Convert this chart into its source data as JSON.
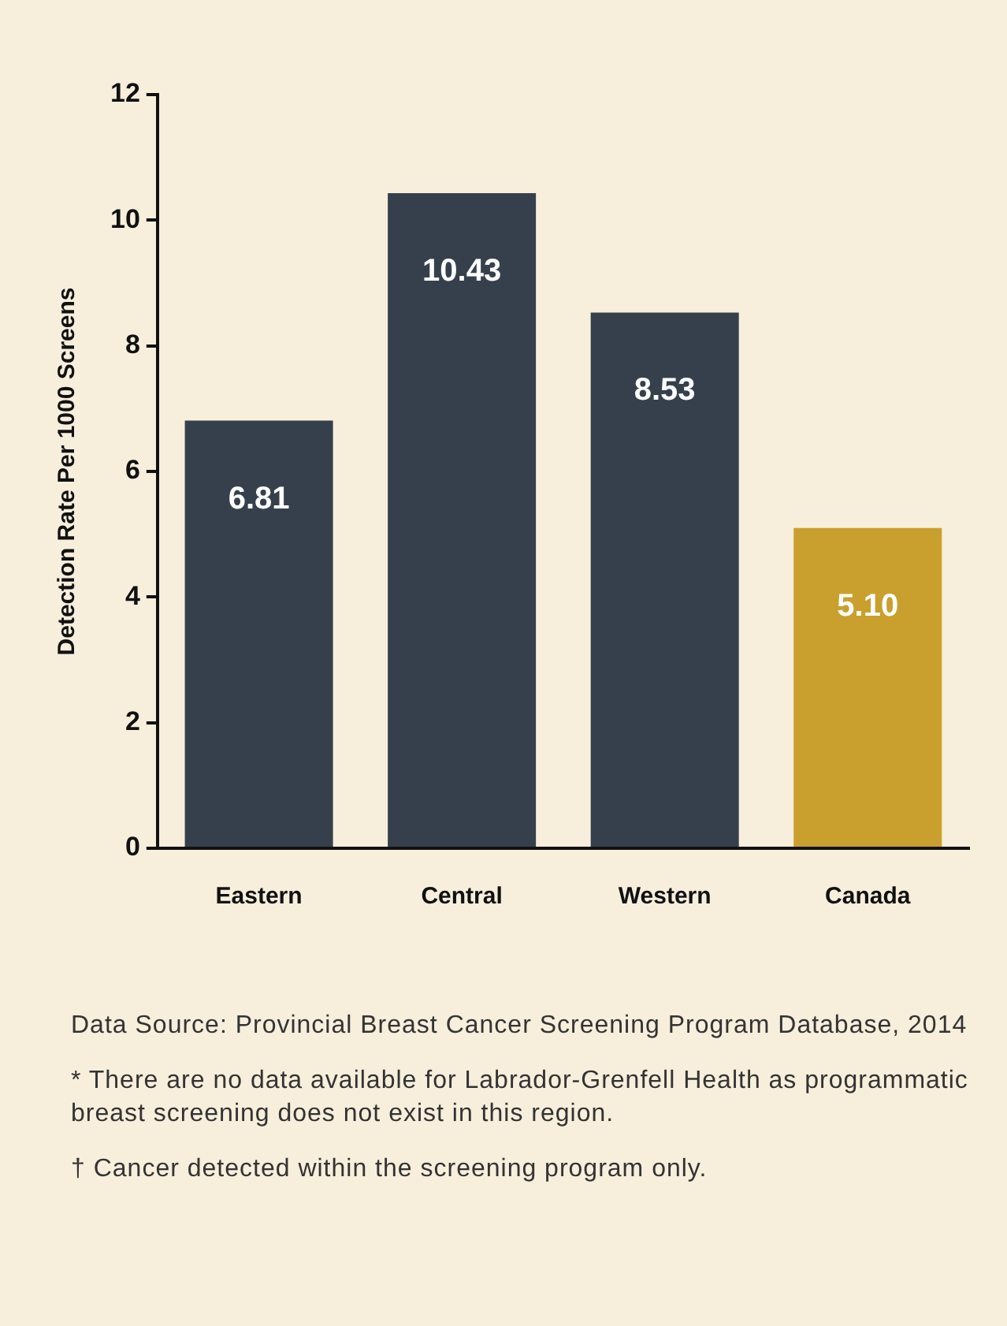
{
  "chart_data": {
    "type": "bar",
    "ylabel": "Detection Rate Per 1000 Screens",
    "categories": [
      "Eastern",
      "Central",
      "Western",
      "Canada"
    ],
    "values": [
      6.81,
      10.43,
      8.53,
      5.1
    ],
    "colors": [
      "#36404d",
      "#36404d",
      "#36404d",
      "#c9a02e"
    ],
    "value_labels": [
      "6.81",
      "10.43",
      "8.53",
      "5.10"
    ],
    "ylim": [
      0,
      12
    ],
    "yticks": [
      0,
      2,
      4,
      6,
      8,
      10,
      12
    ],
    "grid": false,
    "legend": false,
    "annotations": [
      "Data Source: Provincial Breast Cancer Screening Program Database, 2014",
      "* There are no data available for Labrador-Grenfell Health as programmatic breast screening does not exist in this region.",
      "† Cancer detected within the screening program only."
    ]
  }
}
